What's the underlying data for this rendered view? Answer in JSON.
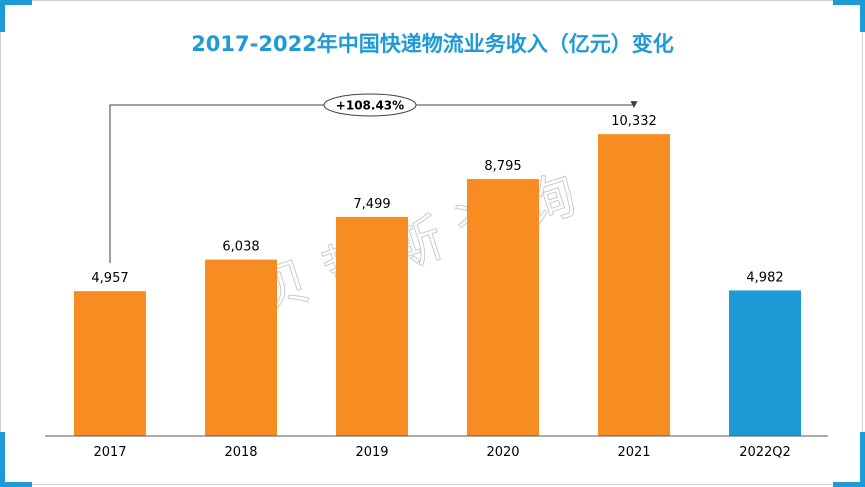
{
  "chart_data": {
    "type": "bar",
    "title": "2017-2022年中国快递物流业务收入（亿元）变化",
    "categories": [
      "2017",
      "2018",
      "2019",
      "2020",
      "2021",
      "2022Q2"
    ],
    "values": [
      4957,
      6038,
      7499,
      8795,
      10332,
      4982
    ],
    "value_labels": [
      "4,957",
      "6,038",
      "7,499",
      "8,795",
      "10,332",
      "4,982"
    ],
    "ylim": [
      0,
      11500
    ],
    "colors": {
      "annual": "#f78d20",
      "partial": "#1e9ad6",
      "title": "#1e9ad6"
    },
    "annotation": {
      "text": "+108.43%",
      "from": "2017",
      "to": "2021"
    }
  },
  "watermark": "贝哲斯咨询"
}
